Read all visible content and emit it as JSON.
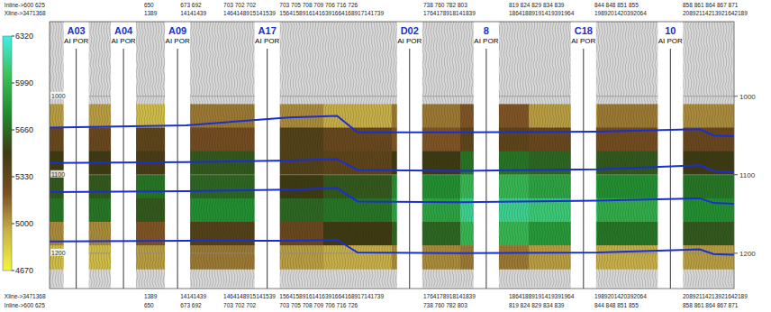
{
  "chart_data": {
    "type": "seismic_section",
    "xlim": [
      0,
      100
    ],
    "ylim": [
      905,
      1245
    ],
    "yticks": [
      1000,
      1100,
      1200
    ],
    "grid": true,
    "header": [
      {
        "x": -6.6,
        "inline": "Inline->600  625",
        "xline": "Xline->3471368"
      },
      {
        "x": 13.8,
        "inline": "650",
        "xline": "1389"
      },
      {
        "x": 19.1,
        "inline": "673  692",
        "xline": "14141439"
      },
      {
        "x": 25.4,
        "inline": "703  702  702",
        "xline": "1464148915141539"
      },
      {
        "x": 33.6,
        "inline": "703  705  708  709  706  716  726",
        "xline": "15641589161416391664168917141739"
      },
      {
        "x": 54.6,
        "inline": "738  760  782  803",
        "xline": "1764178918141839"
      },
      {
        "x": 67.1,
        "inline": "819  824  829  834  839",
        "xline": "18641889191419391964"
      },
      {
        "x": 79.6,
        "inline": "844  848  851  855",
        "xline": "1989201420392064"
      },
      {
        "x": 92.5,
        "inline": "858  861  864  867  871",
        "xline": "20892114213921642189"
      }
    ],
    "wells": [
      {
        "name": "A03",
        "x": 3.9,
        "logs": "AI POR"
      },
      {
        "name": "A04",
        "x": 10.8,
        "logs": "AI POR"
      },
      {
        "name": "A09",
        "x": 18.7,
        "logs": "AI POR"
      },
      {
        "name": "A17",
        "x": 31.8,
        "logs": "AI POR"
      },
      {
        "name": "D02",
        "x": 52.6,
        "logs": "AI POR"
      },
      {
        "name": "8",
        "x": 63.8,
        "logs": "AI POR"
      },
      {
        "name": "C18",
        "x": 78,
        "logs": "AI POR"
      },
      {
        "name": "10",
        "x": 90.7,
        "logs": "AI POR"
      }
    ],
    "horizons": {
      "x": [
        0,
        20,
        35,
        42,
        45,
        60,
        80,
        95,
        97,
        100
      ],
      "series": [
        {
          "color": "#1a2fd0",
          "values": [
            1040,
            1037,
            1027,
            1025,
            1046,
            1046,
            1045,
            1042,
            1050,
            1051
          ]
        },
        {
          "color": "#1a2fd0",
          "values": [
            1085,
            1084,
            1082,
            1080,
            1094,
            1095,
            1093,
            1088,
            1095,
            1097
          ]
        },
        {
          "color": "#1a2fd0",
          "values": [
            1122,
            1121,
            1119,
            1117,
            1134,
            1135,
            1133,
            1130,
            1136,
            1137
          ]
        },
        {
          "color": "#1a2fd0",
          "values": [
            1185,
            1184,
            1184,
            1183,
            1199,
            1200,
            1199,
            1195,
            1201,
            1202
          ]
        }
      ]
    },
    "cells": {
      "x_edges": [
        0,
        10,
        20,
        30,
        40,
        50,
        60,
        70,
        80,
        90,
        100
      ],
      "y_edges": [
        905,
        950,
        980,
        1010,
        1040,
        1070,
        1100,
        1130,
        1160,
        1190,
        1220,
        1245
      ],
      "values": [
        [
          null,
          null,
          null,
          null,
          null,
          null,
          null,
          null,
          null,
          null
        ],
        [
          null,
          null,
          null,
          null,
          null,
          null,
          null,
          null,
          null,
          null
        ],
        [
          null,
          null,
          null,
          null,
          null,
          null,
          null,
          null,
          null,
          null
        ],
        [
          5000,
          4900,
          5100,
          5050,
          4950,
          5100,
          5200,
          5000,
          5100,
          5050
        ],
        [
          5300,
          5350,
          5250,
          5400,
          5300,
          5200,
          5350,
          5300,
          5250,
          5300
        ],
        [
          5500,
          5450,
          5600,
          5400,
          5350,
          5500,
          5700,
          5650,
          5600,
          5500
        ],
        [
          5600,
          5700,
          5650,
          5500,
          5600,
          5800,
          6000,
          5900,
          5800,
          5700
        ],
        [
          5700,
          5600,
          5800,
          5650,
          5700,
          5900,
          6150,
          6100,
          5950,
          5800
        ],
        [
          5050,
          5200,
          5400,
          5300,
          5500,
          5650,
          6000,
          5850,
          5700,
          5600
        ],
        [
          4900,
          5000,
          5100,
          5000,
          4950,
          5050,
          5100,
          5000,
          4950,
          5000
        ],
        [
          null,
          null,
          null,
          null,
          null,
          null,
          null,
          null,
          null,
          null
        ]
      ]
    },
    "colorbar": {
      "range": [
        4670,
        6320
      ],
      "ticks": [
        4670,
        5000,
        5330,
        5660,
        5990,
        6320
      ],
      "colors": [
        "#f5f53c",
        "#c9b24a",
        "#7a4e22",
        "#3f3a12",
        "#1f8a2c",
        "#3cc05a",
        "#3ef0e6"
      ]
    }
  }
}
